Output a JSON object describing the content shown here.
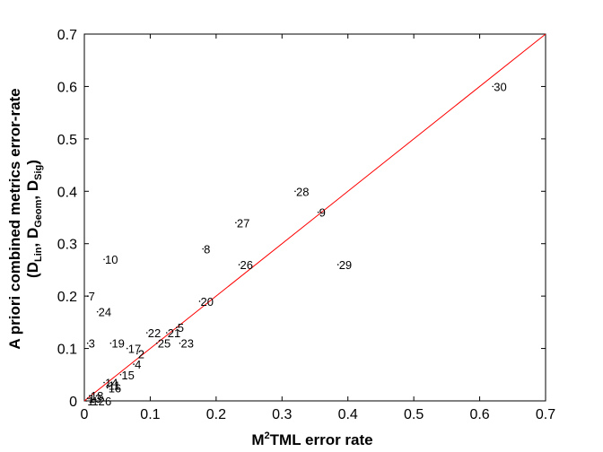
{
  "chart_data": {
    "type": "scatter",
    "xlim": [
      0,
      0.7
    ],
    "ylim": [
      0,
      0.7
    ],
    "x_ticks": [
      "0",
      "0.1",
      "0.2",
      "0.3",
      "0.4",
      "0.5",
      "0.6",
      "0.7"
    ],
    "y_ticks": [
      "0",
      "0.1",
      "0.2",
      "0.3",
      "0.4",
      "0.5",
      "0.6",
      "0.7"
    ],
    "xlabel": {
      "pre": "M",
      "sup": "2",
      "post": "TML error rate"
    },
    "ylabel_line1": "A priori combined metrics error-rate",
    "ylabel_line2": {
      "open": "(D",
      "s1": "Lin",
      "mid1": ", D",
      "s2": "Geom",
      "mid2": ", D",
      "s3": "Sig",
      "close": ")"
    },
    "diagonal_color": "#ff0000",
    "grid": false,
    "points": [
      {
        "label": "30",
        "x": 0.62,
        "y": 0.6
      },
      {
        "label": "28",
        "x": 0.32,
        "y": 0.4
      },
      {
        "label": "9",
        "x": 0.355,
        "y": 0.36
      },
      {
        "label": "27",
        "x": 0.23,
        "y": 0.34
      },
      {
        "label": "8",
        "x": 0.18,
        "y": 0.29
      },
      {
        "label": "10",
        "x": 0.03,
        "y": 0.27
      },
      {
        "label": "26",
        "x": 0.235,
        "y": 0.26
      },
      {
        "label": "29",
        "x": 0.385,
        "y": 0.26
      },
      {
        "label": "7",
        "x": 0.005,
        "y": 0.2
      },
      {
        "label": "20",
        "x": 0.175,
        "y": 0.19
      },
      {
        "label": "24",
        "x": 0.02,
        "y": 0.17
      },
      {
        "label": "5",
        "x": 0.14,
        "y": 0.14
      },
      {
        "label": "22",
        "x": 0.095,
        "y": 0.13
      },
      {
        "label": "21",
        "x": 0.125,
        "y": 0.13
      },
      {
        "label": "3",
        "x": 0.005,
        "y": 0.11
      },
      {
        "label": "19",
        "x": 0.04,
        "y": 0.11
      },
      {
        "label": "25",
        "x": 0.11,
        "y": 0.11
      },
      {
        "label": "23",
        "x": 0.145,
        "y": 0.11
      },
      {
        "label": "17",
        "x": 0.065,
        "y": 0.1
      },
      {
        "label": "2",
        "x": 0.08,
        "y": 0.09
      },
      {
        "label": "4",
        "x": 0.075,
        "y": 0.07
      },
      {
        "label": "15",
        "x": 0.055,
        "y": 0.05
      },
      {
        "label": "14",
        "x": 0.03,
        "y": 0.035
      },
      {
        "label": "11",
        "x": 0.035,
        "y": 0.03
      },
      {
        "label": "16",
        "x": 0.035,
        "y": 0.025
      },
      {
        "label": "13",
        "x": 0.005,
        "y": 0.005
      },
      {
        "label": "18",
        "x": 0.008,
        "y": 0.01
      },
      {
        "label": "1",
        "x": 0.003,
        "y": 0.0
      },
      {
        "label": "12",
        "x": 0.01,
        "y": 0.0
      },
      {
        "label": "6",
        "x": 0.03,
        "y": 0.0
      }
    ]
  }
}
